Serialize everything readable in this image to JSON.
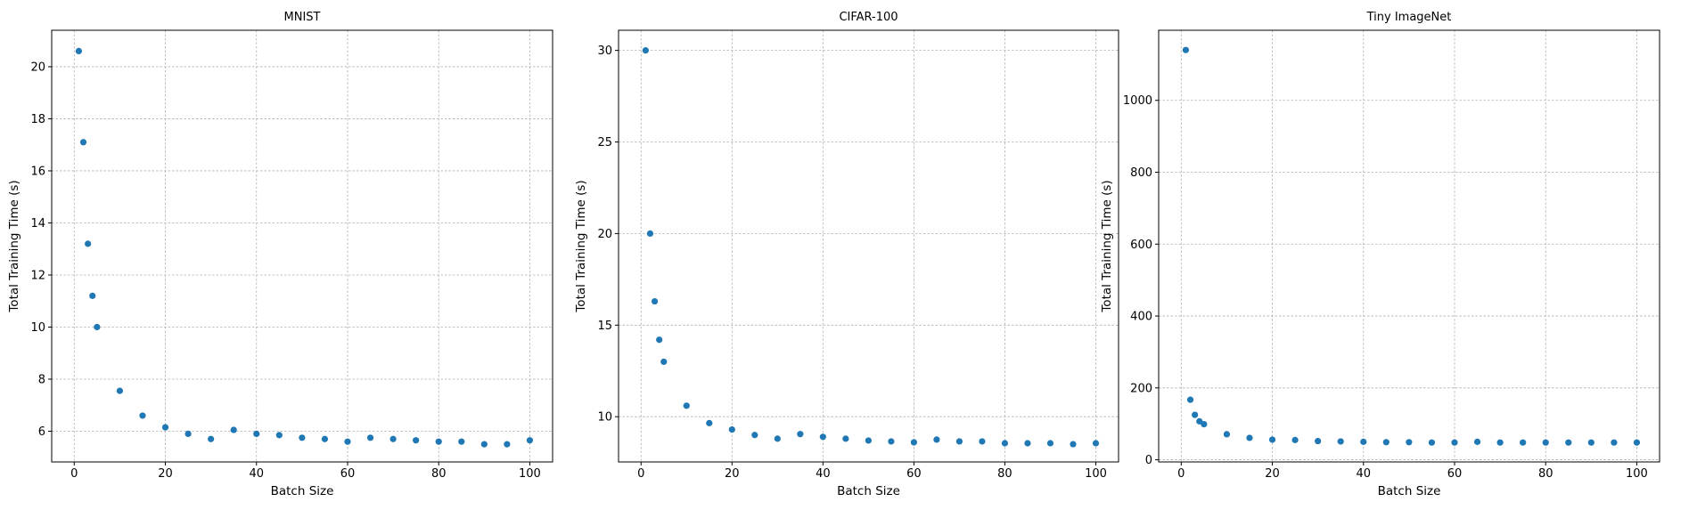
{
  "colors": {
    "marker": "#1f77b4",
    "grid": "#b0b0b0",
    "axis": "#000000"
  },
  "chart_data": [
    {
      "type": "scatter",
      "title": "MNIST",
      "xlabel": "Batch Size",
      "ylabel": "Total Training Time (s)",
      "grid": true,
      "xlim": [
        -4.95,
        105.0
      ],
      "ylim": [
        4.82,
        21.4
      ],
      "xticks": [
        0,
        20,
        40,
        60,
        80,
        100
      ],
      "yticks": [
        6,
        8,
        10,
        12,
        14,
        16,
        18,
        20
      ],
      "x": [
        1,
        2,
        3,
        4,
        5,
        10,
        15,
        20,
        25,
        30,
        35,
        40,
        45,
        50,
        55,
        60,
        65,
        70,
        75,
        80,
        85,
        90,
        95,
        100
      ],
      "y": [
        20.6,
        17.1,
        13.2,
        11.2,
        10.0,
        7.55,
        6.6,
        6.15,
        5.9,
        5.7,
        6.05,
        5.9,
        5.85,
        5.75,
        5.7,
        5.6,
        5.75,
        5.7,
        5.65,
        5.6,
        5.6,
        5.5,
        5.5,
        5.65
      ]
    },
    {
      "type": "scatter",
      "title": "CIFAR-100",
      "xlabel": "Batch Size",
      "ylabel": "Total Training Time (s)",
      "grid": true,
      "xlim": [
        -4.95,
        105.0
      ],
      "ylim": [
        7.53,
        31.1
      ],
      "xticks": [
        0,
        20,
        40,
        60,
        80,
        100
      ],
      "yticks": [
        10,
        15,
        20,
        25,
        30
      ],
      "x": [
        1,
        2,
        3,
        4,
        5,
        10,
        15,
        20,
        25,
        30,
        35,
        40,
        45,
        50,
        55,
        60,
        65,
        70,
        75,
        80,
        85,
        90,
        95,
        100
      ],
      "y": [
        30.0,
        20.0,
        16.3,
        14.2,
        13.0,
        10.6,
        9.65,
        9.3,
        9.0,
        8.8,
        9.05,
        8.9,
        8.8,
        8.7,
        8.65,
        8.6,
        8.75,
        8.65,
        8.65,
        8.55,
        8.55,
        8.55,
        8.5,
        8.55
      ]
    },
    {
      "type": "scatter",
      "title": "Tiny ImageNet",
      "xlabel": "Batch Size",
      "ylabel": "Total Training Time (s)",
      "grid": true,
      "xlim": [
        -4.95,
        105.0
      ],
      "ylim": [
        -6.0,
        1195.0
      ],
      "xticks": [
        0,
        20,
        40,
        60,
        80,
        100
      ],
      "yticks": [
        0,
        200,
        400,
        600,
        800,
        1000
      ],
      "x": [
        1,
        2,
        3,
        4,
        5,
        10,
        15,
        20,
        25,
        30,
        35,
        40,
        45,
        50,
        55,
        60,
        65,
        70,
        75,
        80,
        85,
        90,
        95,
        100
      ],
      "y": [
        1140,
        167,
        125,
        107,
        99,
        71,
        61,
        56,
        55,
        52,
        51,
        50,
        49,
        49,
        48,
        48,
        50,
        48,
        48,
        48,
        48,
        48,
        48,
        48
      ]
    }
  ]
}
